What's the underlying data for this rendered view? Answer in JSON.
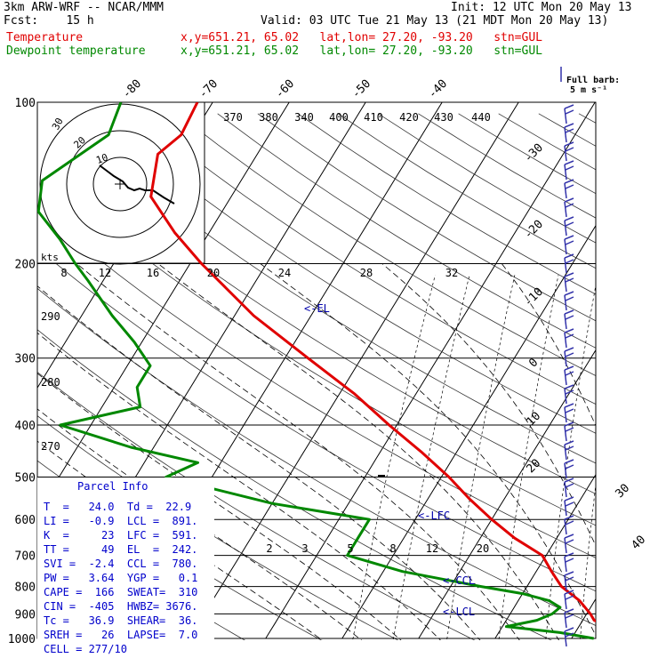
{
  "header": {
    "line1_left": "3km ARW-WRF -- NCAR/MMM",
    "line1_right": "Init: 12 UTC Mon 20 May 13",
    "line2_left": "Fcst:    15 h",
    "line2_right": "Valid: 03 UTC Tue 21 May 13 (21 MDT Mon 20 May 13)",
    "line3_label": "Temperature",
    "line3_info": "x,y=651.21, 65.02   lat,lon= 27.20, -93.20   stn=GUL",
    "line4_label": "Dewpoint temperature",
    "line4_info": "x,y=651.21, 65.02   lat,lon= 27.20, -93.20   stn=GUL"
  },
  "colors": {
    "temperature": "#e00000",
    "dewpoint": "#008800",
    "barbs": "#3333aa",
    "parcel_text": "#0000cc"
  },
  "wind_legend": {
    "line1": "Full barb:",
    "line2": "5 m s⁻¹"
  },
  "hodograph": {
    "units": "kts",
    "ring_labels": [
      "30",
      "20",
      "10"
    ]
  },
  "chart_data": {
    "type": "line",
    "title": "",
    "pressure_ticks": [
      "100",
      "200",
      "300",
      "400",
      "500",
      "600",
      "700",
      "800",
      "900",
      "1000"
    ],
    "isotherm_labels_top": [
      "-80",
      "-70",
      "-60",
      "-50",
      "-40"
    ],
    "isotherm_labels_right": [
      "-30",
      "-20",
      "-10",
      "0",
      "10",
      "20",
      "30",
      "40"
    ],
    "theta_labels_top": [
      "370",
      "380",
      "340",
      "400",
      "410",
      "420",
      "430",
      "440"
    ],
    "theta_labels_left": [
      "290",
      "280",
      "270"
    ],
    "mixing_ratio_labels_mid": [
      "8",
      "12",
      "16",
      "20",
      "24",
      "28",
      "32"
    ],
    "mixing_ratio_labels_low": [
      "2",
      "3",
      "5",
      "8",
      "12",
      "20"
    ],
    "level_markers": [
      "<-EL",
      "<-LFC",
      "<-CCL",
      "<-LCL"
    ],
    "series": [
      {
        "name": "Temperature",
        "unit": "C",
        "points": [
          [
            1000,
            24.0
          ],
          [
            975,
            25.0
          ],
          [
            950,
            24.0
          ],
          [
            925,
            21.5
          ],
          [
            900,
            20.5
          ],
          [
            850,
            18.0
          ],
          [
            800,
            14.5
          ],
          [
            750,
            12.0
          ],
          [
            700,
            9.5
          ],
          [
            650,
            4.5
          ],
          [
            600,
            0.0
          ],
          [
            550,
            -4.5
          ],
          [
            500,
            -9.0
          ],
          [
            450,
            -14.5
          ],
          [
            400,
            -21.0
          ],
          [
            350,
            -28.0
          ],
          [
            300,
            -37.0
          ],
          [
            250,
            -47.5
          ],
          [
            200,
            -58.5
          ],
          [
            175,
            -64.5
          ],
          [
            150,
            -70.5
          ],
          [
            125,
            -73.0
          ],
          [
            115,
            -71.5
          ],
          [
            100,
            -72.0
          ]
        ]
      },
      {
        "name": "Dewpoint temperature",
        "unit": "C",
        "points": [
          [
            1000,
            22.9
          ],
          [
            975,
            18.0
          ],
          [
            950,
            10.5
          ],
          [
            925,
            14.0
          ],
          [
            900,
            15.5
          ],
          [
            875,
            16.0
          ],
          [
            850,
            14.0
          ],
          [
            825,
            10.0
          ],
          [
            800,
            4.0
          ],
          [
            750,
            -7.5
          ],
          [
            700,
            -16.0
          ],
          [
            650,
            -16.0
          ],
          [
            600,
            -16.0
          ],
          [
            560,
            -30.0
          ],
          [
            500,
            -46.0
          ],
          [
            470,
            -43.0
          ],
          [
            440,
            -53.0
          ],
          [
            400,
            -64.0
          ],
          [
            370,
            -55.0
          ],
          [
            340,
            -57.0
          ],
          [
            310,
            -57.0
          ],
          [
            280,
            -61.0
          ],
          [
            250,
            -66.0
          ],
          [
            215,
            -72.0
          ],
          [
            200,
            -75.0
          ],
          [
            180,
            -79.0
          ],
          [
            160,
            -84.0
          ],
          [
            140,
            -86.0
          ],
          [
            115,
            -81.0
          ],
          [
            100,
            -82.0
          ]
        ]
      }
    ]
  },
  "parcel_info": {
    "title": "Parcel Info",
    "rows": [
      "T  =   24.0  Td =  22.9",
      "LI =   -0.9  LCL =  891.",
      "K  =     23  LFC =  591.",
      "TT =     49  EL  =  242.",
      "SVI =  -2.4  CCL =  780.",
      "PW =   3.64  YGP =   0.1",
      "CAPE =  166  SWEAT=  310",
      "CIN =  -405  HWBZ= 3676.",
      "Tc =   36.9  SHEAR=  36.",
      "SREH =   26  LAPSE=  7.0",
      "CELL = 277/10"
    ]
  }
}
